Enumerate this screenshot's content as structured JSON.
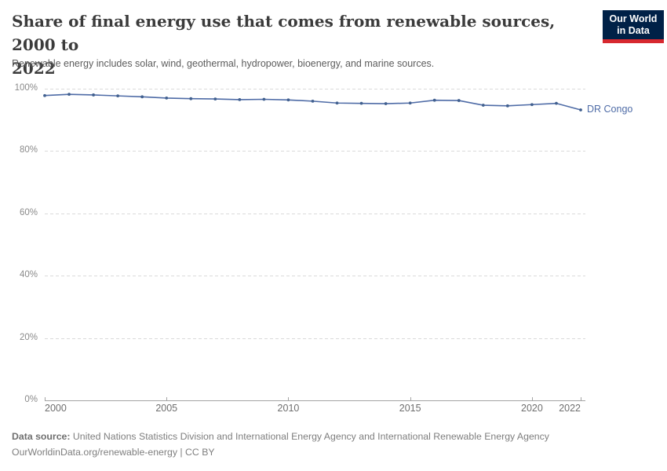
{
  "header": {
    "title": "Share of final energy use that comes from renewable sources, 2000 to 2022",
    "title_lines": [
      "Share of final energy use that comes from renewable sources, 2000 to",
      "2022"
    ],
    "subtitle": "Renewable energy includes solar, wind, geothermal, hydropower, bioenergy, and marine sources.",
    "logo": {
      "line1": "Our World",
      "line2": "in Data",
      "bg_color": "#002147",
      "accent_color": "#d7282f"
    }
  },
  "chart_data": {
    "type": "line",
    "title": "Share of final energy use that comes from renewable sources, 2000 to 2022",
    "xlabel": "",
    "ylabel": "",
    "xlim": [
      2000,
      2022
    ],
    "ylim": [
      0,
      100
    ],
    "grid": "horizontal-dashed",
    "legend_position": "end-of-line-label",
    "x": [
      2000,
      2001,
      2002,
      2003,
      2004,
      2005,
      2006,
      2007,
      2008,
      2009,
      2010,
      2011,
      2012,
      2013,
      2014,
      2015,
      2016,
      2017,
      2018,
      2019,
      2020,
      2021,
      2022
    ],
    "series": [
      {
        "name": "DR Congo",
        "color": "#4e6ba6",
        "marker_color": "#41608f",
        "values": [
          97.8,
          98.2,
          98.0,
          97.7,
          97.4,
          97.0,
          96.8,
          96.7,
          96.5,
          96.6,
          96.4,
          96.0,
          95.4,
          95.3,
          95.2,
          95.4,
          96.3,
          96.2,
          94.7,
          94.5,
          94.9,
          95.3,
          93.2
        ]
      }
    ],
    "y_ticks": [
      {
        "value": 0,
        "label": "0%"
      },
      {
        "value": 20,
        "label": "20%"
      },
      {
        "value": 40,
        "label": "40%"
      },
      {
        "value": 60,
        "label": "60%"
      },
      {
        "value": 80,
        "label": "80%"
      },
      {
        "value": 100,
        "label": "100%"
      }
    ],
    "x_ticks": [
      {
        "value": 2000,
        "label": "2000"
      },
      {
        "value": 2005,
        "label": "2005"
      },
      {
        "value": 2010,
        "label": "2010"
      },
      {
        "value": 2015,
        "label": "2015"
      },
      {
        "value": 2020,
        "label": "2020"
      },
      {
        "value": 2022,
        "label": "2022"
      }
    ]
  },
  "footer": {
    "datasource_label": "Data source:",
    "datasource_text": "United Nations Statistics Division and International Energy Agency and International Renewable Energy Agency",
    "link": "OurWorldinData.org/renewable-energy",
    "separator": "|",
    "license": "CC BY"
  }
}
